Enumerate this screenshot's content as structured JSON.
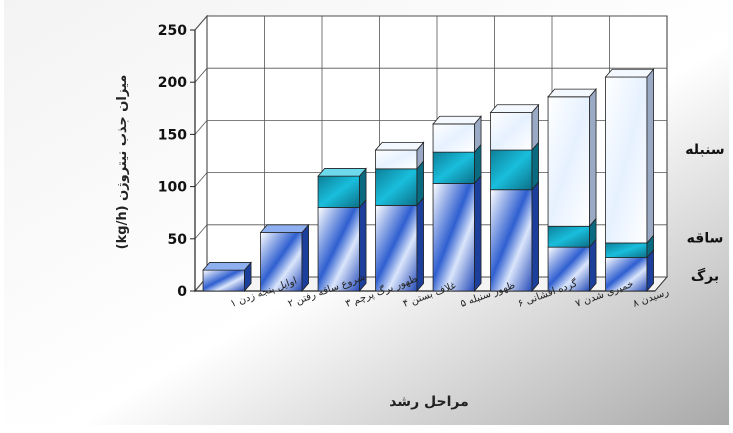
{
  "chart_data": {
    "type": "bar",
    "stacked": true,
    "three_d": true,
    "categories": [
      "اوایل پنجه زدن ۱",
      "شروع ساقه رفتن ۲",
      "ظهور برگ پرچم ۳",
      "غلاف بستن ۴",
      "ظهور سنبله ۵",
      "گرده افشانی ۶",
      "خمیری شدن ۷",
      "رسیدن ۸"
    ],
    "series": [
      {
        "name": "برگ",
        "values": [
          20,
          56,
          80,
          82,
          103,
          97,
          42,
          32
        ],
        "color": "#2f5fd0"
      },
      {
        "name": "ساقه",
        "values": [
          0,
          0,
          30,
          35,
          30,
          38,
          20,
          14
        ],
        "color": "#1aa3bf"
      },
      {
        "name": "سنبله",
        "values": [
          0,
          0,
          0,
          18,
          27,
          36,
          124,
          159
        ],
        "color": "#e4f0ff"
      }
    ],
    "xlabel": "مراحل رشد",
    "ylabel": "میزان جذب نیتروژن (kg/h)",
    "ylim": [
      0,
      250
    ],
    "yticks": [
      0,
      50,
      100,
      150,
      200,
      250
    ],
    "grid": true,
    "legend": "right"
  }
}
